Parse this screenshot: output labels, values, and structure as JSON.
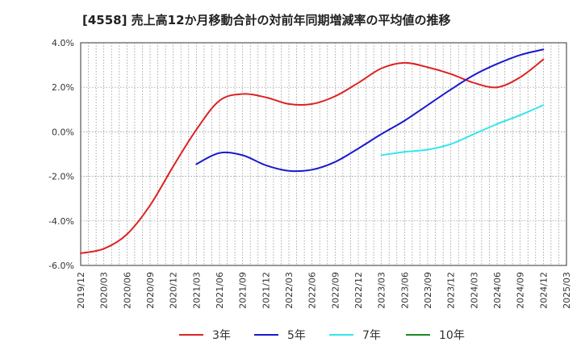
{
  "chart_data": {
    "type": "line",
    "title": "[4558]  売上高12か月移動合計の対前年同期増減率の平均値の推移",
    "xlabel": "",
    "ylabel": "",
    "ylim": [
      -6.0,
      4.0
    ],
    "y_ticks": [
      "4.0%",
      "2.0%",
      "0.0%",
      "-2.0%",
      "-4.0%",
      "-6.0%"
    ],
    "y_tick_values": [
      4,
      2,
      0,
      -2,
      -4,
      -6
    ],
    "categories": [
      "2019/12",
      "2020/03",
      "2020/06",
      "2020/09",
      "2020/12",
      "2021/03",
      "2021/06",
      "2021/09",
      "2021/12",
      "2022/03",
      "2022/06",
      "2022/09",
      "2022/12",
      "2023/03",
      "2023/06",
      "2023/09",
      "2023/12",
      "2024/03",
      "2024/06",
      "2024/09",
      "2024/12",
      "2025/03"
    ],
    "grid": true,
    "legend_position": "bottom",
    "series": [
      {
        "name": "3年",
        "color": "#dd2222",
        "values": [
          -5.45,
          -5.25,
          -4.6,
          -3.3,
          -1.55,
          0.1,
          1.4,
          1.7,
          1.55,
          1.25,
          1.25,
          1.6,
          2.2,
          2.85,
          3.1,
          2.9,
          2.6,
          2.2,
          2.0,
          2.45,
          3.25,
          null
        ]
      },
      {
        "name": "5年",
        "color": "#1a1acc",
        "values": [
          null,
          null,
          null,
          null,
          null,
          -1.45,
          -0.95,
          -1.05,
          -1.5,
          -1.75,
          -1.7,
          -1.35,
          -0.75,
          -0.1,
          0.5,
          1.2,
          1.9,
          2.55,
          3.05,
          3.45,
          3.7,
          null
        ]
      },
      {
        "name": "7年",
        "color": "#33e6ee",
        "values": [
          null,
          null,
          null,
          null,
          null,
          null,
          null,
          null,
          null,
          null,
          null,
          null,
          null,
          -1.05,
          -0.9,
          -0.8,
          -0.55,
          -0.1,
          0.35,
          0.75,
          1.2,
          null
        ]
      },
      {
        "name": "10年",
        "color": "#228822",
        "values": [
          null,
          null,
          null,
          null,
          null,
          null,
          null,
          null,
          null,
          null,
          null,
          null,
          null,
          null,
          null,
          null,
          null,
          null,
          null,
          null,
          null,
          null
        ]
      }
    ]
  }
}
